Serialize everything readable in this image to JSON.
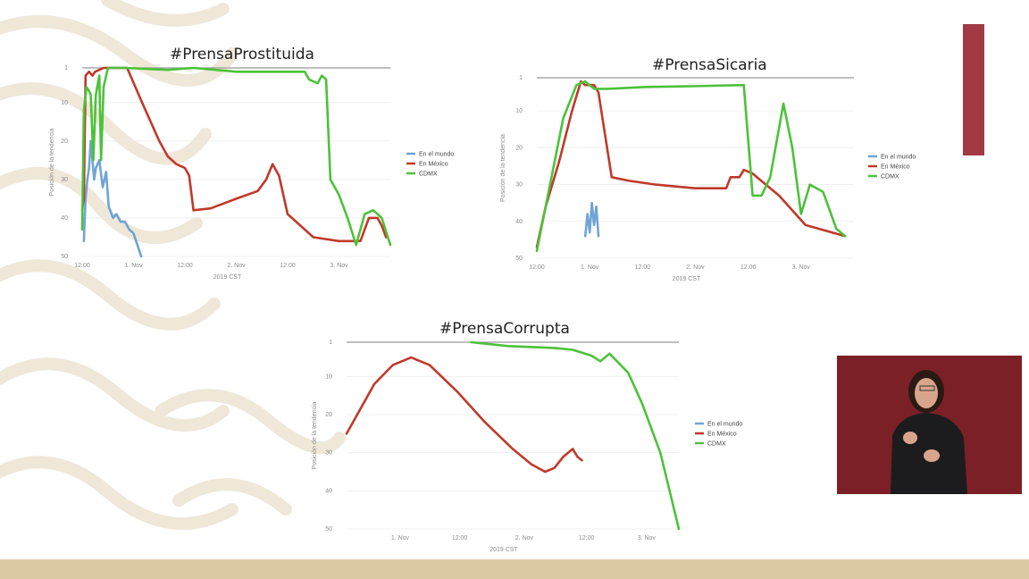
{
  "colors": {
    "en_el_mundo": "#6fa4d6",
    "en_mexico": "#c0392b",
    "cdmx": "#4cc23a",
    "accent_bar": "#a23a45",
    "interpreter_bg": "#7c2027",
    "bottom_band": "#dcc9a4"
  },
  "chart_data": [
    {
      "type": "line",
      "title": "#PrensaProstituida",
      "xlabel": "2019 CST",
      "ylabel": "Posición de la tendencia",
      "y_inverted": true,
      "ylim": [
        1,
        50
      ],
      "yticks": [
        "1",
        "10",
        "20",
        "30",
        "40",
        "50"
      ],
      "xlim": [
        0,
        72
      ],
      "xticks": [
        "12:00",
        "1. Nov",
        "12:00",
        "2. Nov",
        "12:00",
        "3. Nov"
      ],
      "xtick_hours": [
        0,
        12,
        24,
        36,
        48,
        60
      ],
      "legend": [
        "En el mundo",
        "En México",
        "CDMX"
      ],
      "legend_position": "right",
      "grid": true,
      "series": [
        {
          "name": "En el mundo",
          "color_key": "en_el_mundo",
          "points": [
            [
              0.4,
              46
            ],
            [
              0.8,
              35
            ],
            [
              1.2,
              30
            ],
            [
              1.6,
              27
            ],
            [
              2,
              20
            ],
            [
              2.4,
              25
            ],
            [
              2.8,
              30
            ],
            [
              3.2,
              27
            ],
            [
              4,
              25
            ],
            [
              4.8,
              32
            ],
            [
              5.6,
              28
            ],
            [
              6.2,
              37
            ],
            [
              7.2,
              40
            ],
            [
              8,
              39
            ],
            [
              9,
              41
            ],
            [
              10,
              41
            ],
            [
              11,
              43
            ],
            [
              12,
              44
            ],
            [
              13.8,
              50
            ]
          ]
        },
        {
          "name": "En México",
          "color_key": "en_mexico",
          "points": [
            [
              0,
              38
            ],
            [
              0.4,
              35
            ],
            [
              0.8,
              3
            ],
            [
              1.6,
              2
            ],
            [
              2.4,
              3
            ],
            [
              3,
              2
            ],
            [
              4,
              1.5
            ],
            [
              5,
              1
            ],
            [
              8,
              1
            ],
            [
              10.5,
              1
            ],
            [
              14,
              10
            ],
            [
              18,
              20
            ],
            [
              20,
              24
            ],
            [
              22,
              26
            ],
            [
              24,
              27
            ],
            [
              25,
              29
            ],
            [
              26,
              38
            ],
            [
              30,
              37.5
            ],
            [
              36,
              35
            ],
            [
              41,
              33
            ],
            [
              43,
              30
            ],
            [
              44.5,
              26
            ],
            [
              46,
              29
            ],
            [
              48,
              39
            ],
            [
              54,
              45
            ],
            [
              60,
              46
            ],
            [
              64,
              46
            ],
            [
              65,
              46
            ],
            [
              67,
              40
            ],
            [
              69,
              40
            ],
            [
              70,
              42
            ],
            [
              71,
              45
            ]
          ]
        },
        {
          "name": "CDMX",
          "color_key": "cdmx",
          "points": [
            [
              0,
              43
            ],
            [
              0.4,
              12
            ],
            [
              1,
              6
            ],
            [
              1.6,
              7
            ],
            [
              2,
              8
            ],
            [
              2.6,
              25
            ],
            [
              3.2,
              8
            ],
            [
              4,
              3
            ],
            [
              4.4,
              25
            ],
            [
              5,
              6
            ],
            [
              6,
              1
            ],
            [
              10,
              1
            ],
            [
              20,
              1.5
            ],
            [
              26,
              1
            ],
            [
              36,
              2
            ],
            [
              46,
              2
            ],
            [
              52,
              2
            ],
            [
              53,
              4
            ],
            [
              55,
              5
            ],
            [
              56,
              3
            ],
            [
              57,
              4
            ],
            [
              58,
              30
            ],
            [
              60,
              34
            ],
            [
              62,
              40
            ],
            [
              64,
              47
            ],
            [
              66,
              39
            ],
            [
              68,
              38
            ],
            [
              70,
              40
            ],
            [
              72,
              47
            ]
          ]
        }
      ]
    },
    {
      "type": "line",
      "title": "#PrensaSicaria",
      "xlabel": "2019 CST",
      "ylabel": "Posición de la tendencia",
      "y_inverted": true,
      "ylim": [
        1,
        50
      ],
      "yticks": [
        "1",
        "10",
        "20",
        "30",
        "40",
        "50"
      ],
      "xlim": [
        0,
        72
      ],
      "xticks": [
        "12:00",
        "1. Nov",
        "12:00",
        "2. Nov",
        "12:00",
        "3. Nov"
      ],
      "xtick_hours": [
        0,
        12,
        24,
        36,
        48,
        60
      ],
      "legend": [
        "En el mundo",
        "En México",
        "CDMX"
      ],
      "legend_position": "right",
      "grid": true,
      "series": [
        {
          "name": "En el mundo",
          "color_key": "en_el_mundo",
          "points": [
            [
              11,
              44
            ],
            [
              11.5,
              38
            ],
            [
              12,
              43
            ],
            [
              12.5,
              35
            ],
            [
              13,
              41
            ],
            [
              13.5,
              36
            ],
            [
              14,
              44
            ]
          ]
        },
        {
          "name": "En México",
          "color_key": "en_mexico",
          "points": [
            [
              0,
              47
            ],
            [
              2,
              36
            ],
            [
              5,
              24
            ],
            [
              8,
              10
            ],
            [
              10,
              2
            ],
            [
              11,
              3
            ],
            [
              12,
              3
            ],
            [
              13,
              3
            ],
            [
              14,
              5
            ],
            [
              17,
              28
            ],
            [
              21,
              29
            ],
            [
              27,
              30
            ],
            [
              36,
              31
            ],
            [
              43,
              31
            ],
            [
              44,
              28
            ],
            [
              46,
              28
            ],
            [
              47,
              26
            ],
            [
              49,
              27
            ],
            [
              52,
              30
            ],
            [
              55,
              33
            ],
            [
              58,
              37
            ],
            [
              61,
              41
            ],
            [
              64,
              42
            ],
            [
              67,
              43
            ],
            [
              70,
              44
            ]
          ]
        },
        {
          "name": "CDMX",
          "color_key": "cdmx",
          "points": [
            [
              0,
              48
            ],
            [
              3,
              30
            ],
            [
              6,
              12
            ],
            [
              9,
              3
            ],
            [
              11,
              2
            ],
            [
              13,
              4
            ],
            [
              16,
              4
            ],
            [
              25,
              3.5
            ],
            [
              35,
              3.3
            ],
            [
              47,
              3
            ],
            [
              49,
              33
            ],
            [
              51,
              33
            ],
            [
              53,
              28
            ],
            [
              56,
              8
            ],
            [
              58,
              20
            ],
            [
              60,
              38
            ],
            [
              62,
              30
            ],
            [
              65,
              32
            ],
            [
              68,
              42
            ],
            [
              70,
              44
            ]
          ]
        }
      ]
    },
    {
      "type": "line",
      "title": "#PrensaCorrupta",
      "xlabel": "2019 CST",
      "ylabel": "Posición de la tendencia",
      "y_inverted": true,
      "ylim": [
        1,
        50
      ],
      "yticks": [
        "1",
        "10",
        "20",
        "30",
        "40",
        "50"
      ],
      "xlim": [
        0,
        72
      ],
      "xticks": [
        "1. Nov",
        "12:00",
        "2. Nov",
        "12:00",
        "3. Nov"
      ],
      "xtick_hours": [
        11.6,
        24.5,
        38.5,
        52,
        65
      ],
      "legend": [
        "En el mundo",
        "En México",
        "CDMX"
      ],
      "legend_position": "right",
      "grid": true,
      "series": [
        {
          "name": "En México",
          "color_key": "en_mexico",
          "points": [
            [
              0,
              25
            ],
            [
              6,
              12
            ],
            [
              10,
              7
            ],
            [
              14,
              5
            ],
            [
              18,
              7
            ],
            [
              24,
              14
            ],
            [
              30,
              22
            ],
            [
              36,
              29
            ],
            [
              40,
              33
            ],
            [
              43,
              35
            ],
            [
              45,
              34
            ],
            [
              47,
              31
            ],
            [
              49,
              29
            ],
            [
              50,
              31
            ],
            [
              51,
              32
            ]
          ]
        },
        {
          "name": "CDMX",
          "color_key": "cdmx",
          "points": [
            [
              27,
              1
            ],
            [
              35,
              2
            ],
            [
              45,
              2.5
            ],
            [
              49,
              3
            ],
            [
              53,
              4.5
            ],
            [
              55,
              6
            ],
            [
              57,
              4
            ],
            [
              61,
              9
            ],
            [
              64,
              17
            ],
            [
              68,
              30
            ],
            [
              72,
              50
            ]
          ]
        }
      ]
    }
  ]
}
